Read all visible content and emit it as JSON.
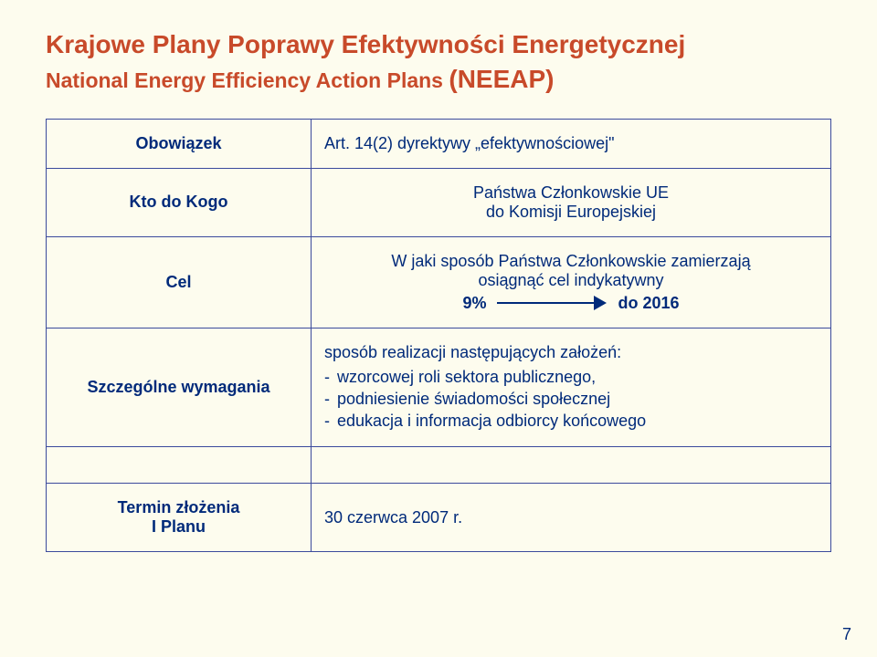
{
  "title": {
    "line1": "Krajowe Plany Poprawy Efektywności Energetycznej",
    "line2_a": "National Energy Efficiency Action Plans ",
    "line2_b": "(NEEAP)"
  },
  "rows": {
    "obowiazek": {
      "label": "Obowiązek",
      "value": "Art. 14(2) dyrektywy „efektywnościowej\""
    },
    "kto": {
      "label": "Kto do Kogo",
      "line1": "Państwa Członkowskie UE",
      "line2": "do Komisji Europejskiej"
    },
    "cel": {
      "label": "Cel",
      "line1": "W jaki sposób Państwa Członkowskie zamierzają",
      "line2": "osiągnąć cel indykatywny",
      "left": "9%",
      "right": "do 2016"
    },
    "szcz": {
      "label": "Szczególne wymagania",
      "intro": "sposób realizacji następujących założeń:",
      "b1": "wzorcowej roli sektora publicznego,",
      "b2": "podniesienie świadomości społecznej",
      "b3": "edukacja i informacja odbiorcy końcowego"
    },
    "termin": {
      "label_l1": "Termin złożenia",
      "label_l2": "I Planu",
      "value": "30 czerwca 2007 r."
    }
  },
  "page_number": "7",
  "colors": {
    "bg": "#fdfcee",
    "title": "#c84a2a",
    "text": "#002a7a",
    "border": "#3b4a9c"
  }
}
